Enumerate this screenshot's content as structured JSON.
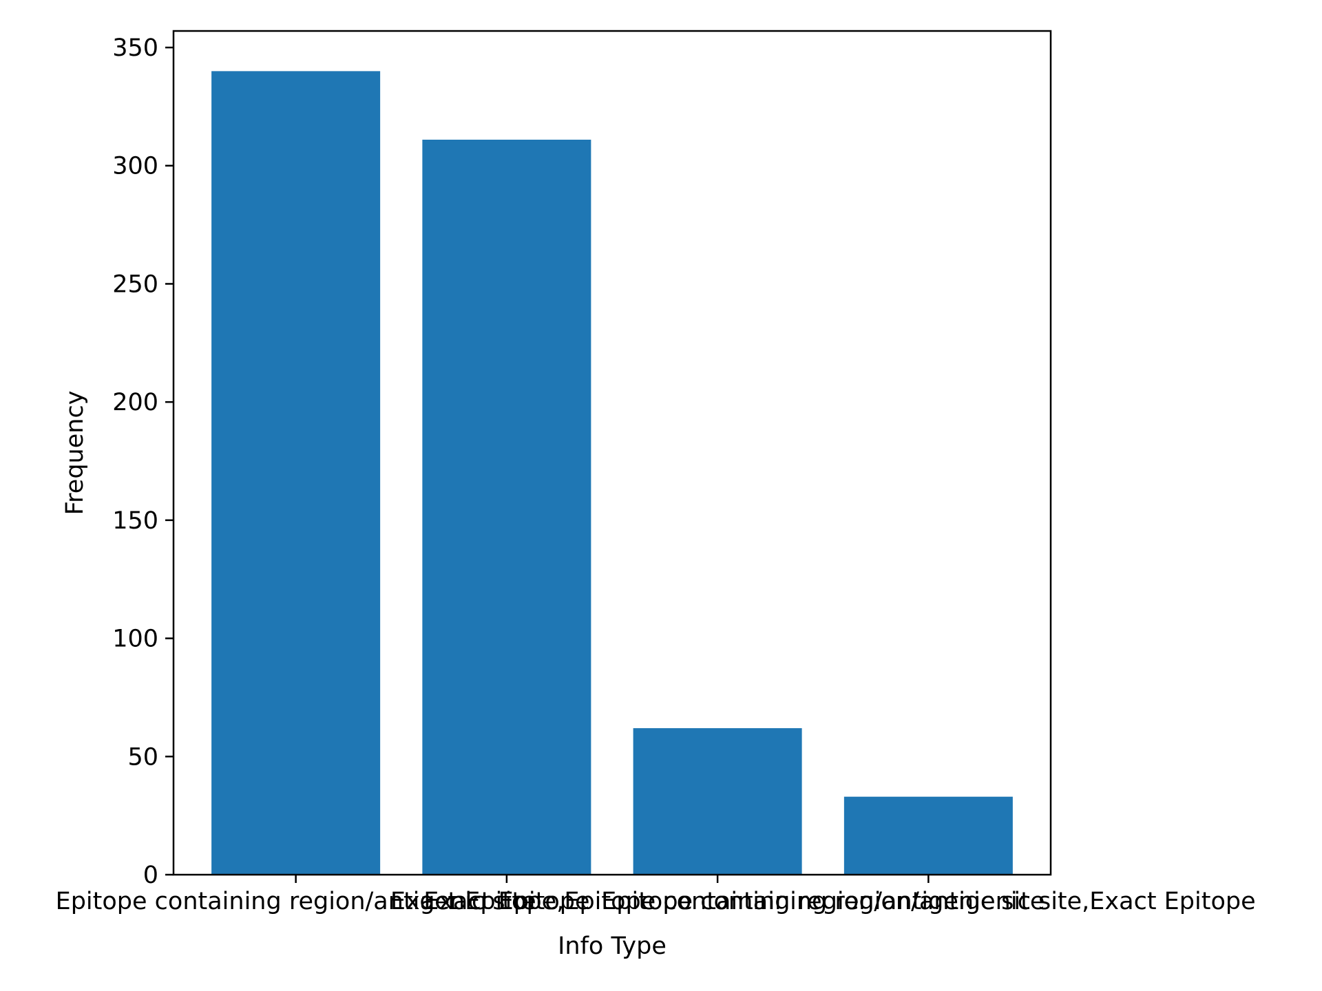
{
  "chart_data": {
    "type": "bar",
    "title": "",
    "xlabel": "Info Type",
    "ylabel": "Frequency",
    "categories": [
      "Epitope containing region/antigenic site",
      "Exact Epitope",
      "Exact Epitope,Epitope containing region/antigenic site",
      "Epitope containing region/antigenic site,Exact Epitope"
    ],
    "values": [
      340,
      311,
      62,
      33
    ],
    "ylim": [
      0,
      357
    ],
    "yticks": [
      0,
      50,
      100,
      150,
      200,
      250,
      300,
      350
    ],
    "grid": false,
    "legend": "none",
    "bar_color": "#1f77b4"
  }
}
